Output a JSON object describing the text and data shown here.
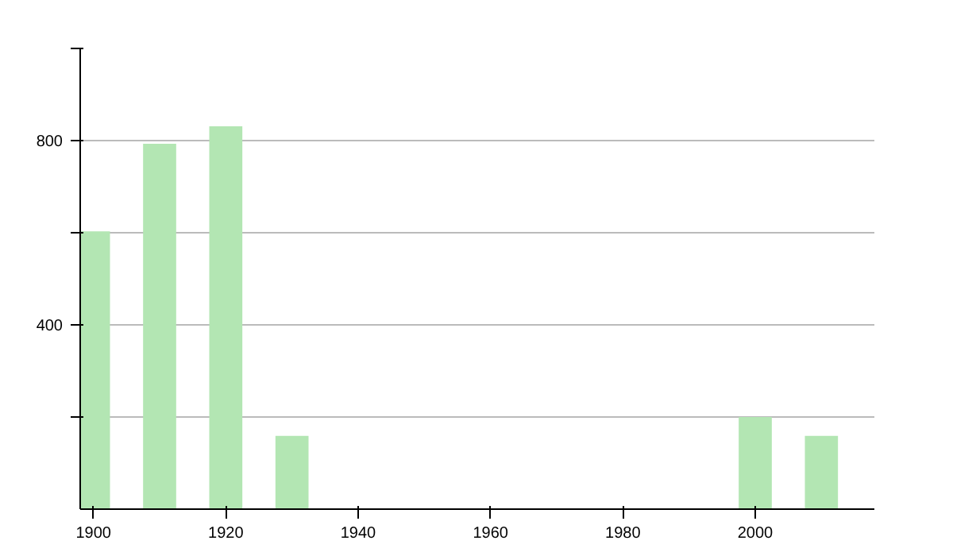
{
  "chart_data": {
    "type": "bar",
    "x": [
      1900,
      1910,
      1920,
      1930,
      2000,
      2010
    ],
    "values": [
      603,
      793,
      831,
      159,
      200,
      159
    ],
    "color": "#b3e6b3",
    "xlim": [
      1898,
      2018
    ],
    "xticks": [
      1900,
      1920,
      1940,
      1960,
      1980,
      2000
    ],
    "ylim": [
      0,
      1000
    ],
    "yticks": [
      {
        "value": 200,
        "label": null
      },
      400,
      {
        "value": 600,
        "label": null
      },
      800,
      {
        "value": 1000,
        "label": null
      }
    ],
    "grid": "y"
  }
}
